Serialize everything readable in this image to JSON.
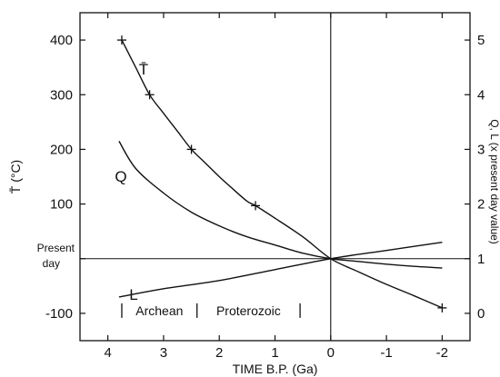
{
  "chart_data": {
    "type": "line",
    "xlabel": "TIME B.P. (Ga)",
    "ylabel_left": "T̄ (°C)",
    "ylabel_right": "Q, L (x present day value)",
    "xlim": [
      4.5,
      -2.5
    ],
    "ylim_left": [
      -150,
      450
    ],
    "ylim_right": [
      -0.5,
      5.5
    ],
    "x_ticks": [
      4,
      3,
      2,
      1,
      0,
      -1,
      -2
    ],
    "x_tick_labels": [
      "4",
      "3",
      "2",
      "1",
      "0",
      "-1",
      "-2"
    ],
    "y_left_ticks": [
      400,
      300,
      200,
      100,
      -100
    ],
    "y_left_tick_labels": [
      "400",
      "300",
      "200",
      "100",
      "-100"
    ],
    "y_left_present_label": [
      "Present",
      "day"
    ],
    "y_right_ticks": [
      5,
      4,
      3,
      2,
      1,
      0
    ],
    "y_right_tick_labels": [
      "5",
      "4",
      "3",
      "2",
      "1",
      "0"
    ],
    "reference_lines": {
      "x": 0,
      "y_left": 0
    },
    "series": [
      {
        "name": "T̄",
        "axis": "left",
        "x": [
          3.75,
          3.5,
          3.25,
          3.0,
          2.75,
          2.5,
          2.25,
          2.0,
          1.75,
          1.5,
          1.35,
          1.0,
          0.5,
          0.0,
          -0.5,
          -1.0,
          -1.5,
          -2.0
        ],
        "y": [
          400,
          350,
          300,
          266,
          233,
          200,
          175,
          150,
          127,
          105,
          97,
          74,
          40,
          0,
          -24,
          -47,
          -68,
          -90
        ],
        "markers_x": [
          3.75,
          3.25,
          2.5,
          1.35,
          -2.0
        ],
        "markers_y": [
          400,
          300,
          200,
          97,
          -90
        ]
      },
      {
        "name": "Q",
        "axis": "right",
        "x": [
          3.8,
          3.5,
          3.0,
          2.5,
          2.0,
          1.5,
          1.0,
          0.5,
          0.0,
          -0.5,
          -1.0,
          -1.5,
          -2.0
        ],
        "y": [
          3.15,
          2.65,
          2.2,
          1.85,
          1.6,
          1.4,
          1.25,
          1.1,
          1.0,
          0.95,
          0.9,
          0.86,
          0.83
        ]
      },
      {
        "name": "L",
        "axis": "right",
        "x": [
          3.8,
          3.0,
          2.0,
          1.0,
          0.0,
          -1.0,
          -2.0
        ],
        "y": [
          0.3,
          0.45,
          0.6,
          0.8,
          1.0,
          1.15,
          1.3
        ]
      }
    ],
    "annotations": [
      {
        "text": "Archean",
        "from_x": 3.75,
        "to_x": 2.4
      },
      {
        "text": "Proterozoic",
        "from_x": 2.4,
        "to_x": 0.55
      }
    ]
  }
}
